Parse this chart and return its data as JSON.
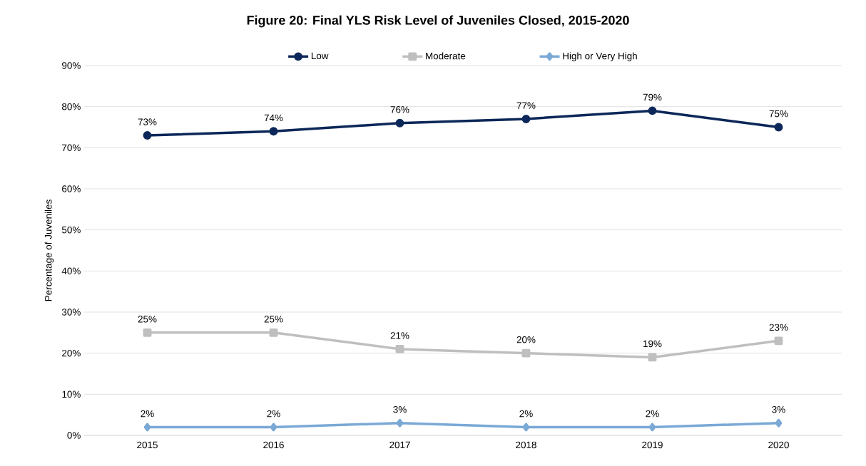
{
  "chart_data": {
    "type": "line",
    "title": "Figure 20: Final YLS Risk Level of Juveniles Closed, 2015-2020",
    "ylabel": "Percentage of Juveniles",
    "categories": [
      "2015",
      "2016",
      "2017",
      "2018",
      "2019",
      "2020"
    ],
    "series": [
      {
        "name": "Low",
        "color": "#0c2759",
        "marker": "circle",
        "values": [
          73,
          74,
          76,
          77,
          79,
          75
        ],
        "value_labels": [
          "73%",
          "74%",
          "76%",
          "77%",
          "79%",
          "75%"
        ]
      },
      {
        "name": "Moderate",
        "color": "#bfbfbf",
        "marker": "square",
        "values": [
          25,
          25,
          21,
          20,
          19,
          23
        ],
        "value_labels": [
          "25%",
          "25%",
          "21%",
          "20%",
          "19%",
          "23%"
        ]
      },
      {
        "name": "High or Very High",
        "color": "#7aa9d6",
        "marker": "diamond",
        "values": [
          2,
          2,
          3,
          2,
          2,
          3
        ],
        "value_labels": [
          "2%",
          "2%",
          "3%",
          "2%",
          "2%",
          "3%"
        ]
      }
    ],
    "ylim": [
      0,
      90
    ],
    "yticks": [
      {
        "value": 0,
        "label": "0%"
      },
      {
        "value": 10,
        "label": "10%"
      },
      {
        "value": 20,
        "label": "20%"
      },
      {
        "value": 30,
        "label": "30%"
      },
      {
        "value": 40,
        "label": "40%"
      },
      {
        "value": 50,
        "label": "50%"
      },
      {
        "value": 60,
        "label": "60%"
      },
      {
        "value": 70,
        "label": "70%"
      },
      {
        "value": 80,
        "label": "80%"
      },
      {
        "value": 90,
        "label": "90%"
      }
    ],
    "grid": "y",
    "legend": "top",
    "line_style": "solid"
  }
}
